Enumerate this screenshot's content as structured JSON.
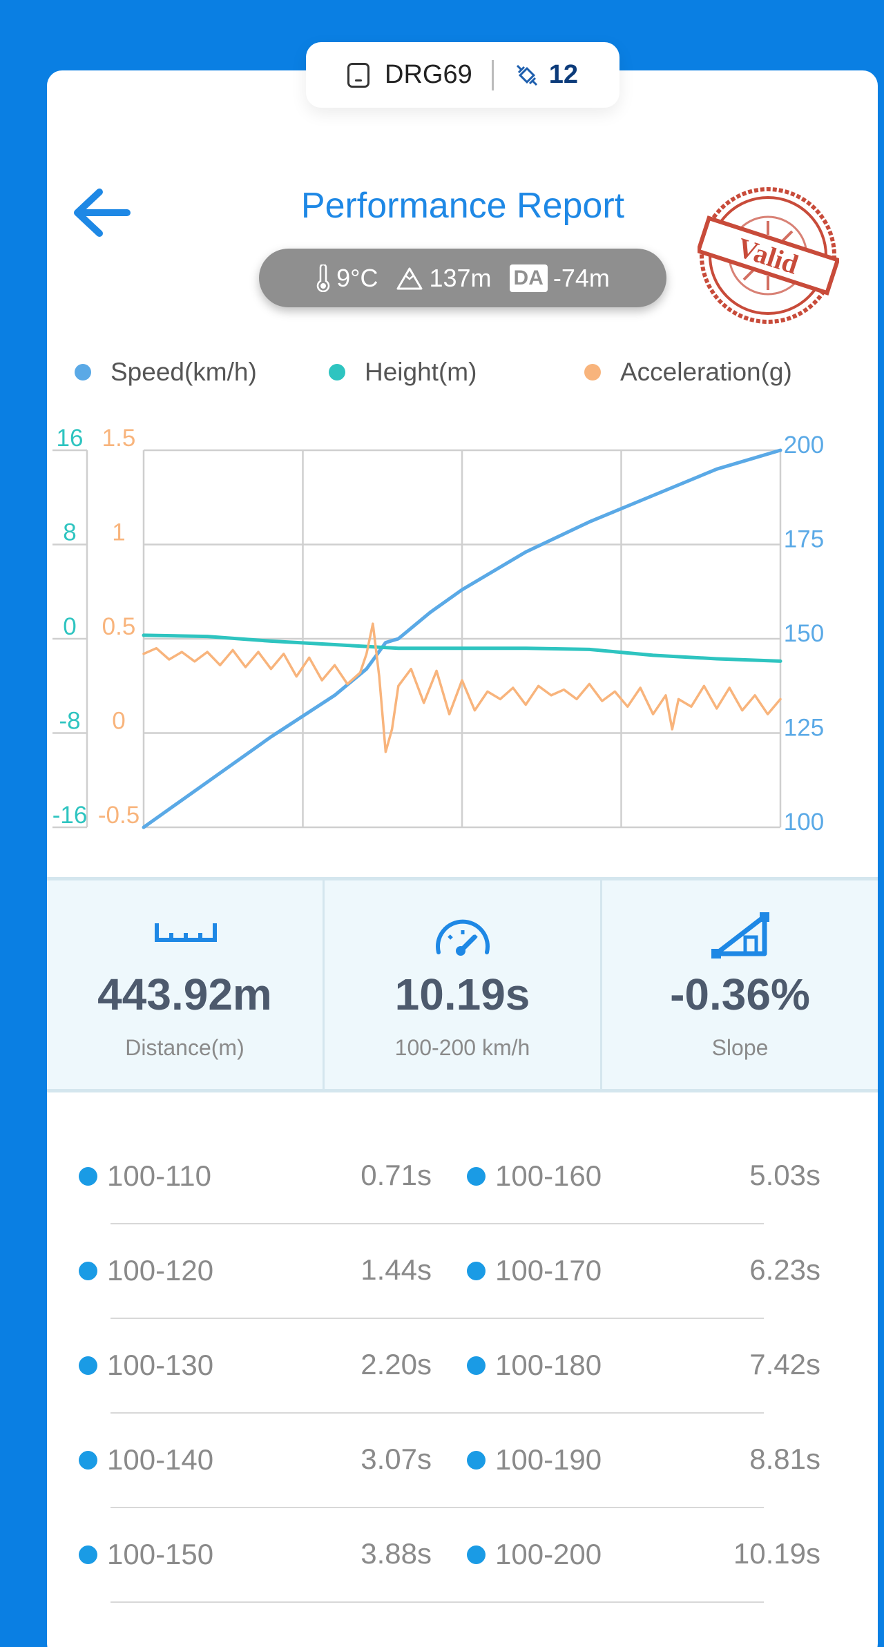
{
  "device": {
    "name": "DRG69",
    "satellites": "12",
    "icons": [
      "phone-icon",
      "satellite-icon"
    ]
  },
  "header": {
    "title": "Performance Report",
    "back_icon": "arrow-left-icon",
    "stamp_text": "Valid"
  },
  "conditions": {
    "temperature": "9°C",
    "altitude": "137m",
    "da_label": "DA",
    "density_altitude": "-74m"
  },
  "legend": [
    {
      "label": "Speed(km/h)",
      "color": "#5aa9e6"
    },
    {
      "label": "Height(m)",
      "color": "#2ec4c0"
    },
    {
      "label": "Acceleration(g)",
      "color": "#f8b47c"
    }
  ],
  "chart_data": {
    "type": "line",
    "y_axes": {
      "height": {
        "ticks": [
          "16",
          "8",
          "0",
          "-8",
          "-16"
        ],
        "range": [
          -16,
          16
        ],
        "color": "#2ec4c0"
      },
      "acceleration": {
        "ticks": [
          "1.5",
          "1",
          "0.5",
          "0",
          "-0.5"
        ],
        "range": [
          -0.5,
          1.5
        ],
        "color": "#f8b47c"
      },
      "speed": {
        "ticks": [
          "200",
          "175",
          "150",
          "125",
          "100"
        ],
        "range": [
          100,
          200
        ],
        "color": "#5aa9e6"
      }
    },
    "grid": true,
    "series": [
      {
        "name": "Speed(km/h)",
        "color": "#5aa9e6",
        "x": [
          0,
          0.1,
          0.2,
          0.3,
          0.35,
          0.38,
          0.4,
          0.45,
          0.5,
          0.6,
          0.7,
          0.8,
          0.9,
          1.0
        ],
        "y": [
          100,
          112,
          124,
          135,
          142,
          149,
          150,
          157,
          163,
          173,
          181,
          188,
          195,
          200
        ]
      },
      {
        "name": "Height(m)",
        "color": "#2ec4c0",
        "x": [
          0,
          0.1,
          0.2,
          0.3,
          0.4,
          0.5,
          0.6,
          0.7,
          0.8,
          0.9,
          1.0
        ],
        "y": [
          0.3,
          0.2,
          -0.2,
          -0.5,
          -0.8,
          -0.8,
          -0.8,
          -0.9,
          -1.4,
          -1.7,
          -1.9
        ]
      },
      {
        "name": "Acceleration(g)",
        "color": "#f8b47c",
        "x": [
          0,
          0.02,
          0.04,
          0.06,
          0.08,
          0.1,
          0.12,
          0.14,
          0.16,
          0.18,
          0.2,
          0.22,
          0.24,
          0.26,
          0.28,
          0.3,
          0.32,
          0.34,
          0.35,
          0.36,
          0.37,
          0.38,
          0.39,
          0.4,
          0.42,
          0.44,
          0.46,
          0.48,
          0.5,
          0.52,
          0.54,
          0.56,
          0.58,
          0.6,
          0.62,
          0.64,
          0.66,
          0.68,
          0.7,
          0.72,
          0.74,
          0.76,
          0.78,
          0.8,
          0.82,
          0.83,
          0.84,
          0.86,
          0.88,
          0.9,
          0.92,
          0.94,
          0.96,
          0.98,
          1.0
        ],
        "y": [
          0.42,
          0.45,
          0.39,
          0.43,
          0.38,
          0.43,
          0.36,
          0.44,
          0.35,
          0.43,
          0.34,
          0.42,
          0.3,
          0.4,
          0.28,
          0.36,
          0.26,
          0.32,
          0.42,
          0.58,
          0.3,
          -0.1,
          0.02,
          0.25,
          0.34,
          0.16,
          0.33,
          0.1,
          0.28,
          0.12,
          0.22,
          0.18,
          0.24,
          0.15,
          0.25,
          0.2,
          0.23,
          0.18,
          0.26,
          0.17,
          0.22,
          0.14,
          0.24,
          0.1,
          0.2,
          0.02,
          0.18,
          0.14,
          0.25,
          0.13,
          0.24,
          0.12,
          0.2,
          0.1,
          0.18
        ]
      }
    ]
  },
  "stats": [
    {
      "icon": "ruler-icon",
      "value": "443.92m",
      "label": "Distance(m)"
    },
    {
      "icon": "speedometer-icon",
      "value": "10.19s",
      "label": "100-200 km/h"
    },
    {
      "icon": "slope-icon",
      "value": "-0.36%",
      "label": "Slope"
    }
  ],
  "splits": [
    {
      "left": {
        "label": "100-110",
        "time": "0.71s"
      },
      "right": {
        "label": "100-160",
        "time": "5.03s"
      }
    },
    {
      "left": {
        "label": "100-120",
        "time": "1.44s"
      },
      "right": {
        "label": "100-170",
        "time": "6.23s"
      }
    },
    {
      "left": {
        "label": "100-130",
        "time": "2.20s"
      },
      "right": {
        "label": "100-180",
        "time": "7.42s"
      }
    },
    {
      "left": {
        "label": "100-140",
        "time": "3.07s"
      },
      "right": {
        "label": "100-190",
        "time": "8.81s"
      }
    },
    {
      "left": {
        "label": "100-150",
        "time": "3.88s"
      },
      "right": {
        "label": "100-200",
        "time": "10.19s"
      }
    }
  ]
}
